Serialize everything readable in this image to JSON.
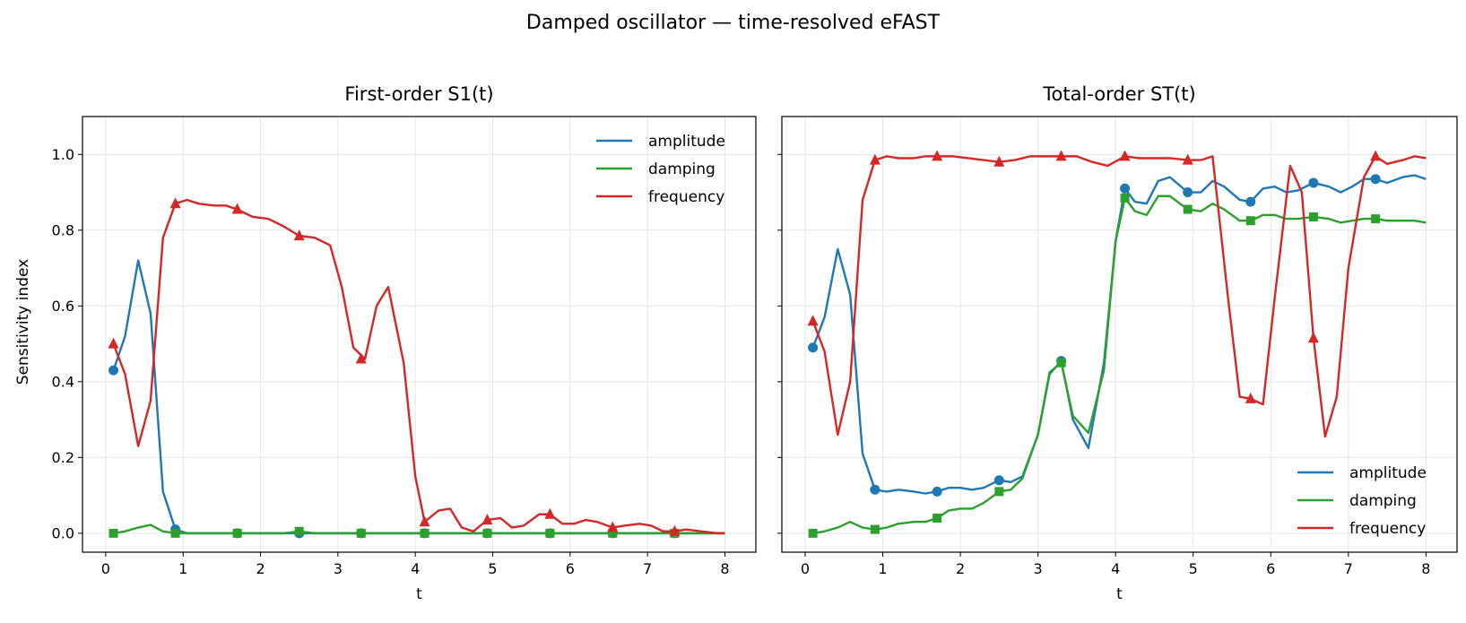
{
  "figure": {
    "title": "Damped oscillator — time-resolved eFAST",
    "ylabel": "Sensitivity index"
  },
  "colors": {
    "amplitude": "#1f77b4",
    "damping": "#2ca02c",
    "frequency": "#d62728"
  },
  "chart_data": [
    {
      "type": "line",
      "title": "First-order S1(t)",
      "xlabel": "t",
      "ylabel": "Sensitivity index",
      "xlim": [
        -0.3,
        8.4
      ],
      "ylim": [
        -0.05,
        1.1
      ],
      "xticks": [
        "0",
        "1",
        "2",
        "3",
        "4",
        "5",
        "6",
        "7",
        "8"
      ],
      "yticks": [
        "0.0",
        "0.2",
        "0.4",
        "0.6",
        "0.8",
        "1.0"
      ],
      "grid": true,
      "legend_position": "upper right",
      "series": [
        {
          "name": "amplitude",
          "marker": "circle",
          "x": [
            0.1,
            0.25,
            0.42,
            0.58,
            0.74,
            0.9,
            1.05,
            1.2,
            1.4,
            1.55,
            1.7,
            1.9,
            2.1,
            2.3,
            2.5,
            2.7,
            2.9,
            3.1,
            3.3,
            3.5,
            3.7,
            3.9,
            4.1,
            4.3,
            4.5,
            4.7,
            4.9,
            5.1,
            5.3,
            5.5,
            5.7,
            5.9,
            6.1,
            6.3,
            6.5,
            6.7,
            6.9,
            7.1,
            7.3,
            7.5,
            7.7,
            7.9,
            8.0
          ],
          "y": [
            0.43,
            0.52,
            0.72,
            0.58,
            0.11,
            0.01,
            0.0,
            0.0,
            0.0,
            0.0,
            0.0,
            0.0,
            0.0,
            0.0,
            0.0,
            0.0,
            0.0,
            0.0,
            0.0,
            0.0,
            0.0,
            0.0,
            0.0,
            0.0,
            0.0,
            0.0,
            0.0,
            0.0,
            0.0,
            0.0,
            0.0,
            0.0,
            0.0,
            0.0,
            0.0,
            0.0,
            0.0,
            0.0,
            0.0,
            0.0,
            0.0,
            0.0,
            0.0
          ],
          "marker_x": [
            0.1,
            0.9,
            1.7,
            2.5,
            3.3,
            4.12,
            4.93,
            5.74,
            6.55,
            7.35
          ],
          "marker_y": [
            0.43,
            0.01,
            0.0,
            0.0,
            0.0,
            0.0,
            0.0,
            0.0,
            0.0,
            0.0
          ]
        },
        {
          "name": "damping",
          "marker": "square",
          "x": [
            0.1,
            0.25,
            0.42,
            0.58,
            0.74,
            0.9,
            1.05,
            1.2,
            1.4,
            1.55,
            1.7,
            1.9,
            2.1,
            2.3,
            2.5,
            2.7,
            2.9,
            3.1,
            3.3,
            3.5,
            3.7,
            3.9,
            4.1,
            4.3,
            4.5,
            4.7,
            4.9,
            5.1,
            5.3,
            5.5,
            5.7,
            5.9,
            6.1,
            6.3,
            6.5,
            6.7,
            6.9,
            7.1,
            7.3,
            7.5,
            7.7,
            7.9,
            8.0
          ],
          "y": [
            0.0,
            0.005,
            0.015,
            0.022,
            0.005,
            0.0,
            0.0,
            0.0,
            0.0,
            0.0,
            0.0,
            0.0,
            0.0,
            0.0,
            0.005,
            0.0,
            0.0,
            0.0,
            0.0,
            0.0,
            0.0,
            0.0,
            0.0,
            0.0,
            0.0,
            0.0,
            0.0,
            0.0,
            0.0,
            0.0,
            0.0,
            0.0,
            0.0,
            0.0,
            0.0,
            0.0,
            0.0,
            0.0,
            0.0,
            0.0,
            0.0,
            0.0,
            0.0
          ],
          "marker_x": [
            0.1,
            0.9,
            1.7,
            2.5,
            3.3,
            4.12,
            4.93,
            5.74,
            6.55,
            7.35
          ],
          "marker_y": [
            0.0,
            0.0,
            0.0,
            0.005,
            0.0,
            0.0,
            0.0,
            0.0,
            0.0,
            0.0
          ]
        },
        {
          "name": "frequency",
          "marker": "triangle",
          "x": [
            0.1,
            0.25,
            0.42,
            0.58,
            0.74,
            0.9,
            1.05,
            1.2,
            1.4,
            1.55,
            1.7,
            1.9,
            2.1,
            2.3,
            2.5,
            2.7,
            2.9,
            3.05,
            3.2,
            3.35,
            3.5,
            3.65,
            3.85,
            4.0,
            4.12,
            4.3,
            4.45,
            4.6,
            4.75,
            4.93,
            5.1,
            5.25,
            5.4,
            5.6,
            5.74,
            5.9,
            6.05,
            6.2,
            6.35,
            6.55,
            6.7,
            6.9,
            7.05,
            7.2,
            7.35,
            7.5,
            7.7,
            7.9,
            8.0
          ],
          "y": [
            0.5,
            0.42,
            0.23,
            0.35,
            0.78,
            0.87,
            0.88,
            0.87,
            0.865,
            0.865,
            0.855,
            0.835,
            0.83,
            0.81,
            0.785,
            0.78,
            0.76,
            0.65,
            0.49,
            0.46,
            0.6,
            0.65,
            0.45,
            0.15,
            0.03,
            0.06,
            0.065,
            0.015,
            0.005,
            0.035,
            0.04,
            0.015,
            0.02,
            0.05,
            0.05,
            0.025,
            0.025,
            0.035,
            0.03,
            0.015,
            0.02,
            0.025,
            0.02,
            0.005,
            0.005,
            0.01,
            0.005,
            0.0,
            0.0
          ],
          "marker_x": [
            0.1,
            0.9,
            1.7,
            2.5,
            3.3,
            4.12,
            4.93,
            5.74,
            6.55,
            7.35
          ],
          "marker_y": [
            0.5,
            0.87,
            0.855,
            0.785,
            0.46,
            0.03,
            0.035,
            0.05,
            0.015,
            0.005
          ]
        }
      ]
    },
    {
      "type": "line",
      "title": "Total-order ST(t)",
      "xlabel": "t",
      "ylabel": "",
      "xlim": [
        -0.3,
        8.4
      ],
      "ylim": [
        -0.05,
        1.1
      ],
      "xticks": [
        "0",
        "1",
        "2",
        "3",
        "4",
        "5",
        "6",
        "7",
        "8"
      ],
      "yticks": [
        "0.0",
        "0.2",
        "0.4",
        "0.6",
        "0.8",
        "1.0"
      ],
      "grid": true,
      "legend_position": "lower right",
      "series": [
        {
          "name": "amplitude",
          "marker": "circle",
          "x": [
            0.1,
            0.25,
            0.42,
            0.58,
            0.74,
            0.9,
            1.05,
            1.2,
            1.4,
            1.55,
            1.7,
            1.85,
            2.0,
            2.15,
            2.3,
            2.5,
            2.65,
            2.8,
            3.0,
            3.15,
            3.3,
            3.45,
            3.65,
            3.85,
            4.0,
            4.12,
            4.25,
            4.4,
            4.55,
            4.7,
            4.93,
            5.1,
            5.25,
            5.4,
            5.6,
            5.74,
            5.9,
            6.05,
            6.2,
            6.35,
            6.55,
            6.75,
            6.9,
            7.05,
            7.2,
            7.35,
            7.5,
            7.7,
            7.85,
            8.0
          ],
          "y": [
            0.49,
            0.57,
            0.75,
            0.63,
            0.21,
            0.115,
            0.11,
            0.115,
            0.11,
            0.105,
            0.11,
            0.12,
            0.12,
            0.115,
            0.12,
            0.14,
            0.135,
            0.15,
            0.26,
            0.42,
            0.455,
            0.3,
            0.225,
            0.45,
            0.77,
            0.91,
            0.875,
            0.87,
            0.93,
            0.94,
            0.9,
            0.9,
            0.93,
            0.915,
            0.88,
            0.875,
            0.91,
            0.915,
            0.9,
            0.905,
            0.925,
            0.915,
            0.9,
            0.915,
            0.935,
            0.935,
            0.925,
            0.94,
            0.945,
            0.935
          ],
          "marker_x": [
            0.1,
            0.9,
            1.7,
            2.5,
            3.3,
            4.12,
            4.93,
            5.74,
            6.55,
            7.35
          ],
          "marker_y": [
            0.49,
            0.115,
            0.11,
            0.14,
            0.455,
            0.91,
            0.9,
            0.875,
            0.925,
            0.935
          ]
        },
        {
          "name": "damping",
          "marker": "square",
          "x": [
            0.1,
            0.25,
            0.42,
            0.58,
            0.74,
            0.9,
            1.05,
            1.2,
            1.4,
            1.55,
            1.7,
            1.85,
            2.0,
            2.15,
            2.3,
            2.5,
            2.65,
            2.8,
            3.0,
            3.15,
            3.3,
            3.45,
            3.65,
            3.85,
            4.0,
            4.12,
            4.25,
            4.4,
            4.55,
            4.7,
            4.93,
            5.1,
            5.25,
            5.4,
            5.6,
            5.74,
            5.9,
            6.05,
            6.2,
            6.35,
            6.55,
            6.75,
            6.9,
            7.05,
            7.2,
            7.35,
            7.5,
            7.7,
            7.85,
            8.0
          ],
          "y": [
            0.0,
            0.005,
            0.015,
            0.03,
            0.015,
            0.01,
            0.015,
            0.025,
            0.03,
            0.03,
            0.04,
            0.06,
            0.065,
            0.065,
            0.08,
            0.11,
            0.115,
            0.145,
            0.26,
            0.425,
            0.45,
            0.31,
            0.265,
            0.43,
            0.77,
            0.885,
            0.85,
            0.84,
            0.89,
            0.89,
            0.855,
            0.85,
            0.87,
            0.855,
            0.825,
            0.825,
            0.84,
            0.84,
            0.83,
            0.83,
            0.835,
            0.83,
            0.82,
            0.825,
            0.83,
            0.83,
            0.825,
            0.825,
            0.825,
            0.82
          ],
          "marker_x": [
            0.1,
            0.9,
            1.7,
            2.5,
            3.3,
            4.12,
            4.93,
            5.74,
            6.55,
            7.35
          ],
          "marker_y": [
            0.0,
            0.01,
            0.04,
            0.11,
            0.45,
            0.885,
            0.855,
            0.825,
            0.835,
            0.83
          ]
        },
        {
          "name": "frequency",
          "marker": "triangle",
          "x": [
            0.1,
            0.25,
            0.42,
            0.58,
            0.74,
            0.9,
            1.05,
            1.2,
            1.4,
            1.55,
            1.7,
            1.9,
            2.1,
            2.3,
            2.5,
            2.7,
            2.9,
            3.1,
            3.3,
            3.5,
            3.7,
            3.9,
            4.12,
            4.3,
            4.5,
            4.7,
            4.93,
            5.1,
            5.25,
            5.45,
            5.6,
            5.74,
            5.9,
            6.05,
            6.25,
            6.4,
            6.55,
            6.7,
            6.85,
            7.0,
            7.2,
            7.35,
            7.5,
            7.7,
            7.85,
            8.0
          ],
          "y": [
            0.56,
            0.48,
            0.26,
            0.4,
            0.88,
            0.985,
            0.995,
            0.99,
            0.99,
            0.995,
            0.995,
            0.995,
            0.99,
            0.985,
            0.98,
            0.985,
            0.995,
            0.995,
            0.995,
            0.995,
            0.98,
            0.97,
            0.995,
            0.99,
            0.99,
            0.99,
            0.985,
            0.985,
            0.995,
            0.62,
            0.36,
            0.355,
            0.34,
            0.62,
            0.97,
            0.9,
            0.515,
            0.255,
            0.36,
            0.7,
            0.94,
            0.995,
            0.975,
            0.985,
            0.995,
            0.99
          ],
          "marker_x": [
            0.1,
            0.9,
            1.7,
            2.5,
            3.3,
            4.12,
            4.93,
            5.74,
            6.55,
            7.35
          ],
          "marker_y": [
            0.56,
            0.985,
            0.995,
            0.98,
            0.995,
            0.995,
            0.985,
            0.355,
            0.515,
            0.995
          ]
        }
      ]
    }
  ]
}
